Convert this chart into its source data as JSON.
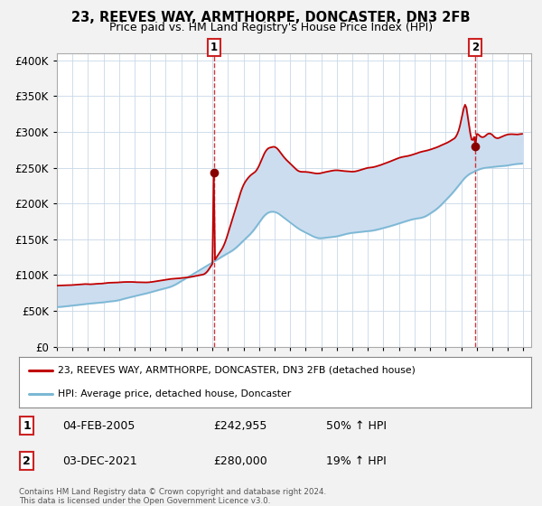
{
  "title": "23, REEVES WAY, ARMTHORPE, DONCASTER, DN3 2FB",
  "subtitle": "Price paid vs. HM Land Registry's House Price Index (HPI)",
  "legend_line1": "23, REEVES WAY, ARMTHORPE, DONCASTER, DN3 2FB (detached house)",
  "legend_line2": "HPI: Average price, detached house, Doncaster",
  "sale1_label": "1",
  "sale2_label": "2",
  "sale1_date": "04-FEB-2005",
  "sale1_price": "£242,955",
  "sale1_hpi": "50% ↑ HPI",
  "sale2_date": "03-DEC-2021",
  "sale2_price": "£280,000",
  "sale2_hpi": "19% ↑ HPI",
  "footer1": "Contains HM Land Registry data © Crown copyright and database right 2024.",
  "footer2": "This data is licensed under the Open Government Licence v3.0.",
  "ylim": [
    0,
    410000
  ],
  "xlim": [
    1995,
    2025.5
  ],
  "fig_bg": "#f2f2f2",
  "plot_bg": "#ffffff",
  "fill_color": "#ccddf0",
  "grid_color": "#c8d8e8",
  "red_color": "#c00000",
  "blue_color": "#7bb8d4",
  "marker_color": "#880000",
  "vline_color": "#cc2222",
  "box_edge_color": "#cc2222",
  "legend_border": "#888888",
  "sale1_year": 2005,
  "sale1_month": 2,
  "sale1_price_val": 242955,
  "sale2_year": 2021,
  "sale2_month": 12,
  "sale2_price_val": 280000
}
